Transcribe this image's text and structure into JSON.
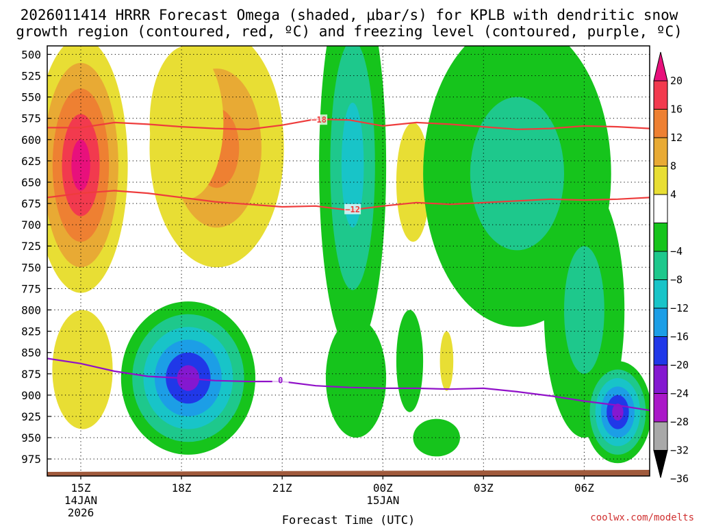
{
  "chart_data": {
    "type": "heatmap",
    "title_lines": [
      "2026011414 HRRR Forecast Omega (shaded, μbar/s) for KPLB with dendritic snow",
      "growth region (contoured, red, ºC) and freezing level (contoured, purple, ºC)"
    ],
    "xlabel": "Forecast Time (UTC)",
    "ylabel": "",
    "credit": "coolwx.com/modelts",
    "x_ticks": [
      {
        "label": "15Z",
        "sub1": "14JAN",
        "sub2": "2026",
        "hour": 15
      },
      {
        "label": "18Z",
        "sub1": "",
        "sub2": "",
        "hour": 18
      },
      {
        "label": "21Z",
        "sub1": "",
        "sub2": "",
        "hour": 21
      },
      {
        "label": "00Z",
        "sub1": "15JAN",
        "sub2": "",
        "hour": 24
      },
      {
        "label": "03Z",
        "sub1": "",
        "sub2": "",
        "hour": 27
      },
      {
        "label": "06Z",
        "sub1": "",
        "sub2": "",
        "hour": 30
      }
    ],
    "x_range_hours": [
      14.0,
      31.95
    ],
    "y_ticks": [
      500,
      525,
      550,
      575,
      600,
      625,
      650,
      675,
      700,
      725,
      750,
      775,
      800,
      825,
      850,
      875,
      900,
      925,
      950,
      975
    ],
    "y_range_mb": [
      490,
      995
    ],
    "grid": true,
    "colorbar": {
      "labels": [
        "20",
        "16",
        "12",
        "8",
        "4",
        "−4",
        "−8",
        "−12",
        "−16",
        "−20",
        "−24",
        "−28",
        "−32",
        "−36"
      ],
      "bands": [
        {
          "lo": 16,
          "hi": 20,
          "color": "#f23a4e"
        },
        {
          "lo": 12,
          "hi": 16,
          "color": "#ee8032"
        },
        {
          "lo": 8,
          "hi": 12,
          "color": "#e8aa34"
        },
        {
          "lo": 4,
          "hi": 8,
          "color": "#e8de34"
        },
        {
          "lo": -4,
          "hi": 4,
          "color": "#ffffff"
        },
        {
          "lo": -8,
          "hi": -4,
          "color": "#16c41c"
        },
        {
          "lo": -12,
          "hi": -8,
          "color": "#1ec88c"
        },
        {
          "lo": -16,
          "hi": -12,
          "color": "#18c4c8"
        },
        {
          "lo": -20,
          "hi": -16,
          "color": "#1c9ee6"
        },
        {
          "lo": -24,
          "hi": -20,
          "color": "#2038e8"
        },
        {
          "lo": -28,
          "hi": -24,
          "color": "#8418d0"
        },
        {
          "lo": -32,
          "hi": -28,
          "color": "#aa18c8"
        },
        {
          "lo": -36,
          "hi": -32,
          "color": "#a8a8a8"
        }
      ],
      "top_color": "#e8107c",
      "bottom_color": "#000000"
    },
    "omega_features": [
      {
        "t": 15.0,
        "p": 630,
        "rt": 1.4,
        "rp": 150,
        "levels": [
          4,
          8,
          12,
          16,
          20
        ]
      },
      {
        "t": 15.05,
        "p": 870,
        "rt": 0.9,
        "rp": 70,
        "levels": [
          4
        ]
      },
      {
        "t": 19.05,
        "p": 610,
        "rt": 2.0,
        "rp": 140,
        "levels": [
          4,
          8,
          12
        ]
      },
      {
        "t": 18.15,
        "p": 580,
        "rt": 1.1,
        "rp": 90,
        "levels": [
          4
        ]
      },
      {
        "t": 23.1,
        "p": 630,
        "rt": 1.0,
        "rp": 220,
        "levels": [
          -4,
          -8,
          -12
        ]
      },
      {
        "t": 23.2,
        "p": 880,
        "rt": 0.9,
        "rp": 70,
        "levels": [
          -4
        ]
      },
      {
        "t": 18.2,
        "p": 880,
        "rt": 2.0,
        "rp": 90,
        "levels": [
          -4,
          -8,
          -12,
          -16,
          -20,
          -24
        ]
      },
      {
        "t": 24.9,
        "p": 650,
        "rt": 0.5,
        "rp": 70,
        "levels": [
          4
        ]
      },
      {
        "t": 25.9,
        "p": 860,
        "rt": 0.2,
        "rp": 35,
        "levels": [
          4
        ]
      },
      {
        "t": 24.8,
        "p": 860,
        "rt": 0.4,
        "rp": 60,
        "levels": [
          -4
        ]
      },
      {
        "t": 25.6,
        "p": 950,
        "rt": 0.7,
        "rp": 22,
        "levels": [
          -4
        ]
      },
      {
        "t": 28.0,
        "p": 640,
        "rt": 2.8,
        "rp": 180,
        "levels": [
          -4,
          -8
        ]
      },
      {
        "t": 30.0,
        "p": 800,
        "rt": 1.2,
        "rp": 150,
        "levels": [
          -4,
          -8
        ]
      },
      {
        "t": 31.0,
        "p": 920,
        "rt": 1.0,
        "rp": 60,
        "levels": [
          -4,
          -8,
          -12,
          -16,
          -20,
          -24
        ]
      }
    ],
    "isotherms": [
      {
        "label": "−18",
        "color": "#ee3c3c",
        "label_at": {
          "t": 22.1,
          "p": 577
        },
        "points": [
          [
            14.0,
            586
          ],
          [
            15.0,
            586
          ],
          [
            16.0,
            580
          ],
          [
            17.0,
            582
          ],
          [
            18.0,
            585
          ],
          [
            19.0,
            587
          ],
          [
            20.0,
            588
          ],
          [
            21.0,
            583
          ],
          [
            22.0,
            576
          ],
          [
            23.0,
            577
          ],
          [
            24.0,
            584
          ],
          [
            25.0,
            580
          ],
          [
            26.0,
            582
          ],
          [
            27.0,
            585
          ],
          [
            28.0,
            588
          ],
          [
            29.0,
            587
          ],
          [
            30.0,
            584
          ],
          [
            31.0,
            585
          ],
          [
            31.95,
            587
          ]
        ]
      },
      {
        "label": "−12",
        "color": "#ee3c3c",
        "label_at": {
          "t": 23.1,
          "p": 682
        },
        "points": [
          [
            14.0,
            668
          ],
          [
            15.0,
            663
          ],
          [
            16.0,
            660
          ],
          [
            17.0,
            663
          ],
          [
            18.0,
            668
          ],
          [
            19.0,
            673
          ],
          [
            20.0,
            676
          ],
          [
            21.0,
            679
          ],
          [
            22.0,
            678
          ],
          [
            23.0,
            683
          ],
          [
            24.0,
            678
          ],
          [
            25.0,
            674
          ],
          [
            26.0,
            676
          ],
          [
            27.0,
            674
          ],
          [
            28.0,
            672
          ],
          [
            29.0,
            670
          ],
          [
            30.0,
            671
          ],
          [
            31.0,
            670
          ],
          [
            31.95,
            668
          ]
        ]
      },
      {
        "label": "0",
        "color": "#9010c8",
        "label_at": {
          "t": 20.95,
          "p": 883
        },
        "points": [
          [
            14.0,
            857
          ],
          [
            15.0,
            863
          ],
          [
            16.0,
            872
          ],
          [
            17.0,
            878
          ],
          [
            18.0,
            880
          ],
          [
            19.0,
            883
          ],
          [
            20.0,
            884
          ],
          [
            21.0,
            884
          ],
          [
            22.0,
            889
          ],
          [
            23.0,
            891
          ],
          [
            24.0,
            892
          ],
          [
            25.0,
            892
          ],
          [
            26.0,
            893
          ],
          [
            27.0,
            892
          ],
          [
            28.0,
            896
          ],
          [
            29.0,
            901
          ],
          [
            30.0,
            907
          ],
          [
            31.0,
            912
          ],
          [
            31.95,
            918
          ]
        ]
      }
    ],
    "terrain_color": "#a05a3c"
  }
}
